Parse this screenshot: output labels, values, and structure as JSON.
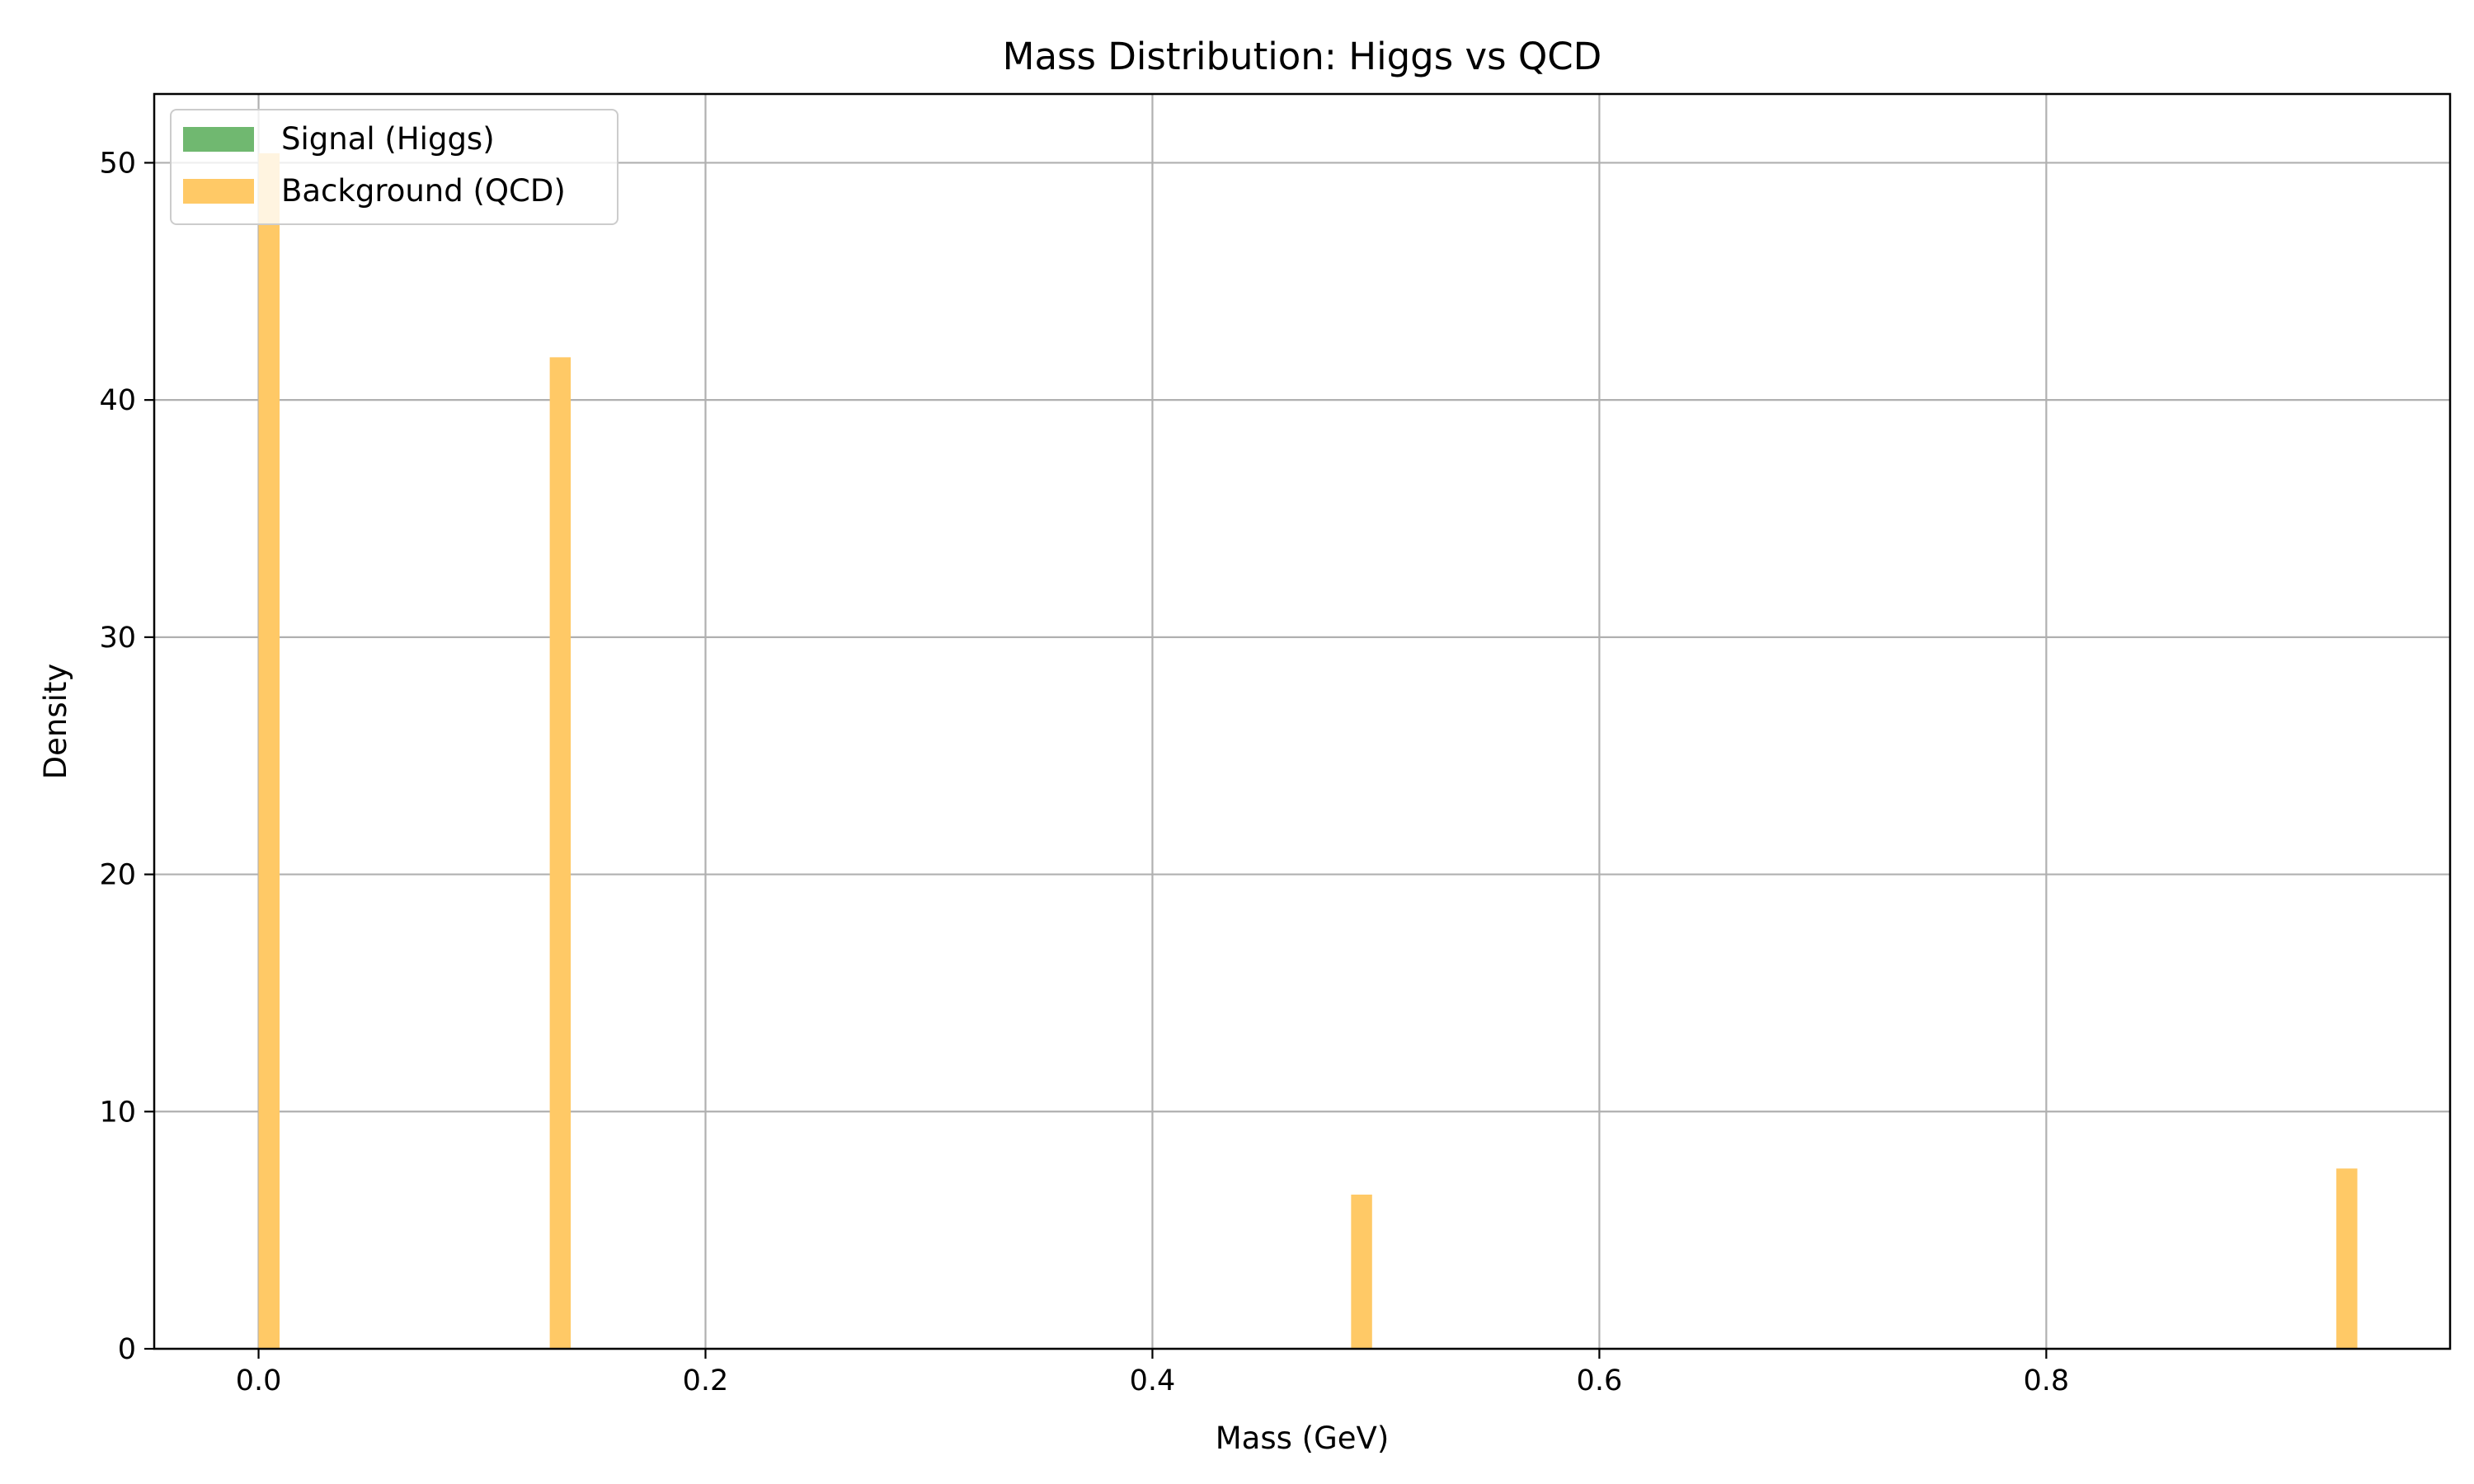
{
  "chart_data": {
    "type": "bar",
    "title": "Mass Distribution: Higgs vs QCD",
    "xlabel": "Mass (GeV)",
    "ylabel": "Density",
    "xlim": [
      -0.0467,
      0.9807
    ],
    "ylim": [
      0,
      52.9
    ],
    "xticks": [
      0.0,
      0.2,
      0.4,
      0.6,
      0.8
    ],
    "xtick_labels": [
      "0.0",
      "0.2",
      "0.4",
      "0.6",
      "0.8"
    ],
    "yticks": [
      0,
      10,
      20,
      30,
      40,
      50
    ],
    "ytick_labels": [
      "0",
      "10",
      "20",
      "30",
      "40",
      "50"
    ],
    "grid": true,
    "legend_position": "upper-left",
    "series": [
      {
        "name": "Signal (Higgs)",
        "color": "#4ca64c",
        "bars": []
      },
      {
        "name": "Background (QCD)",
        "color": "#ffc966",
        "bar_width": 0.0094,
        "bars": [
          {
            "x0": 0.0,
            "value": 50.4
          },
          {
            "x0": 0.1303,
            "value": 41.8
          },
          {
            "x0": 0.4889,
            "value": 6.5
          },
          {
            "x0": 0.9298,
            "value": 7.6
          }
        ]
      }
    ]
  }
}
